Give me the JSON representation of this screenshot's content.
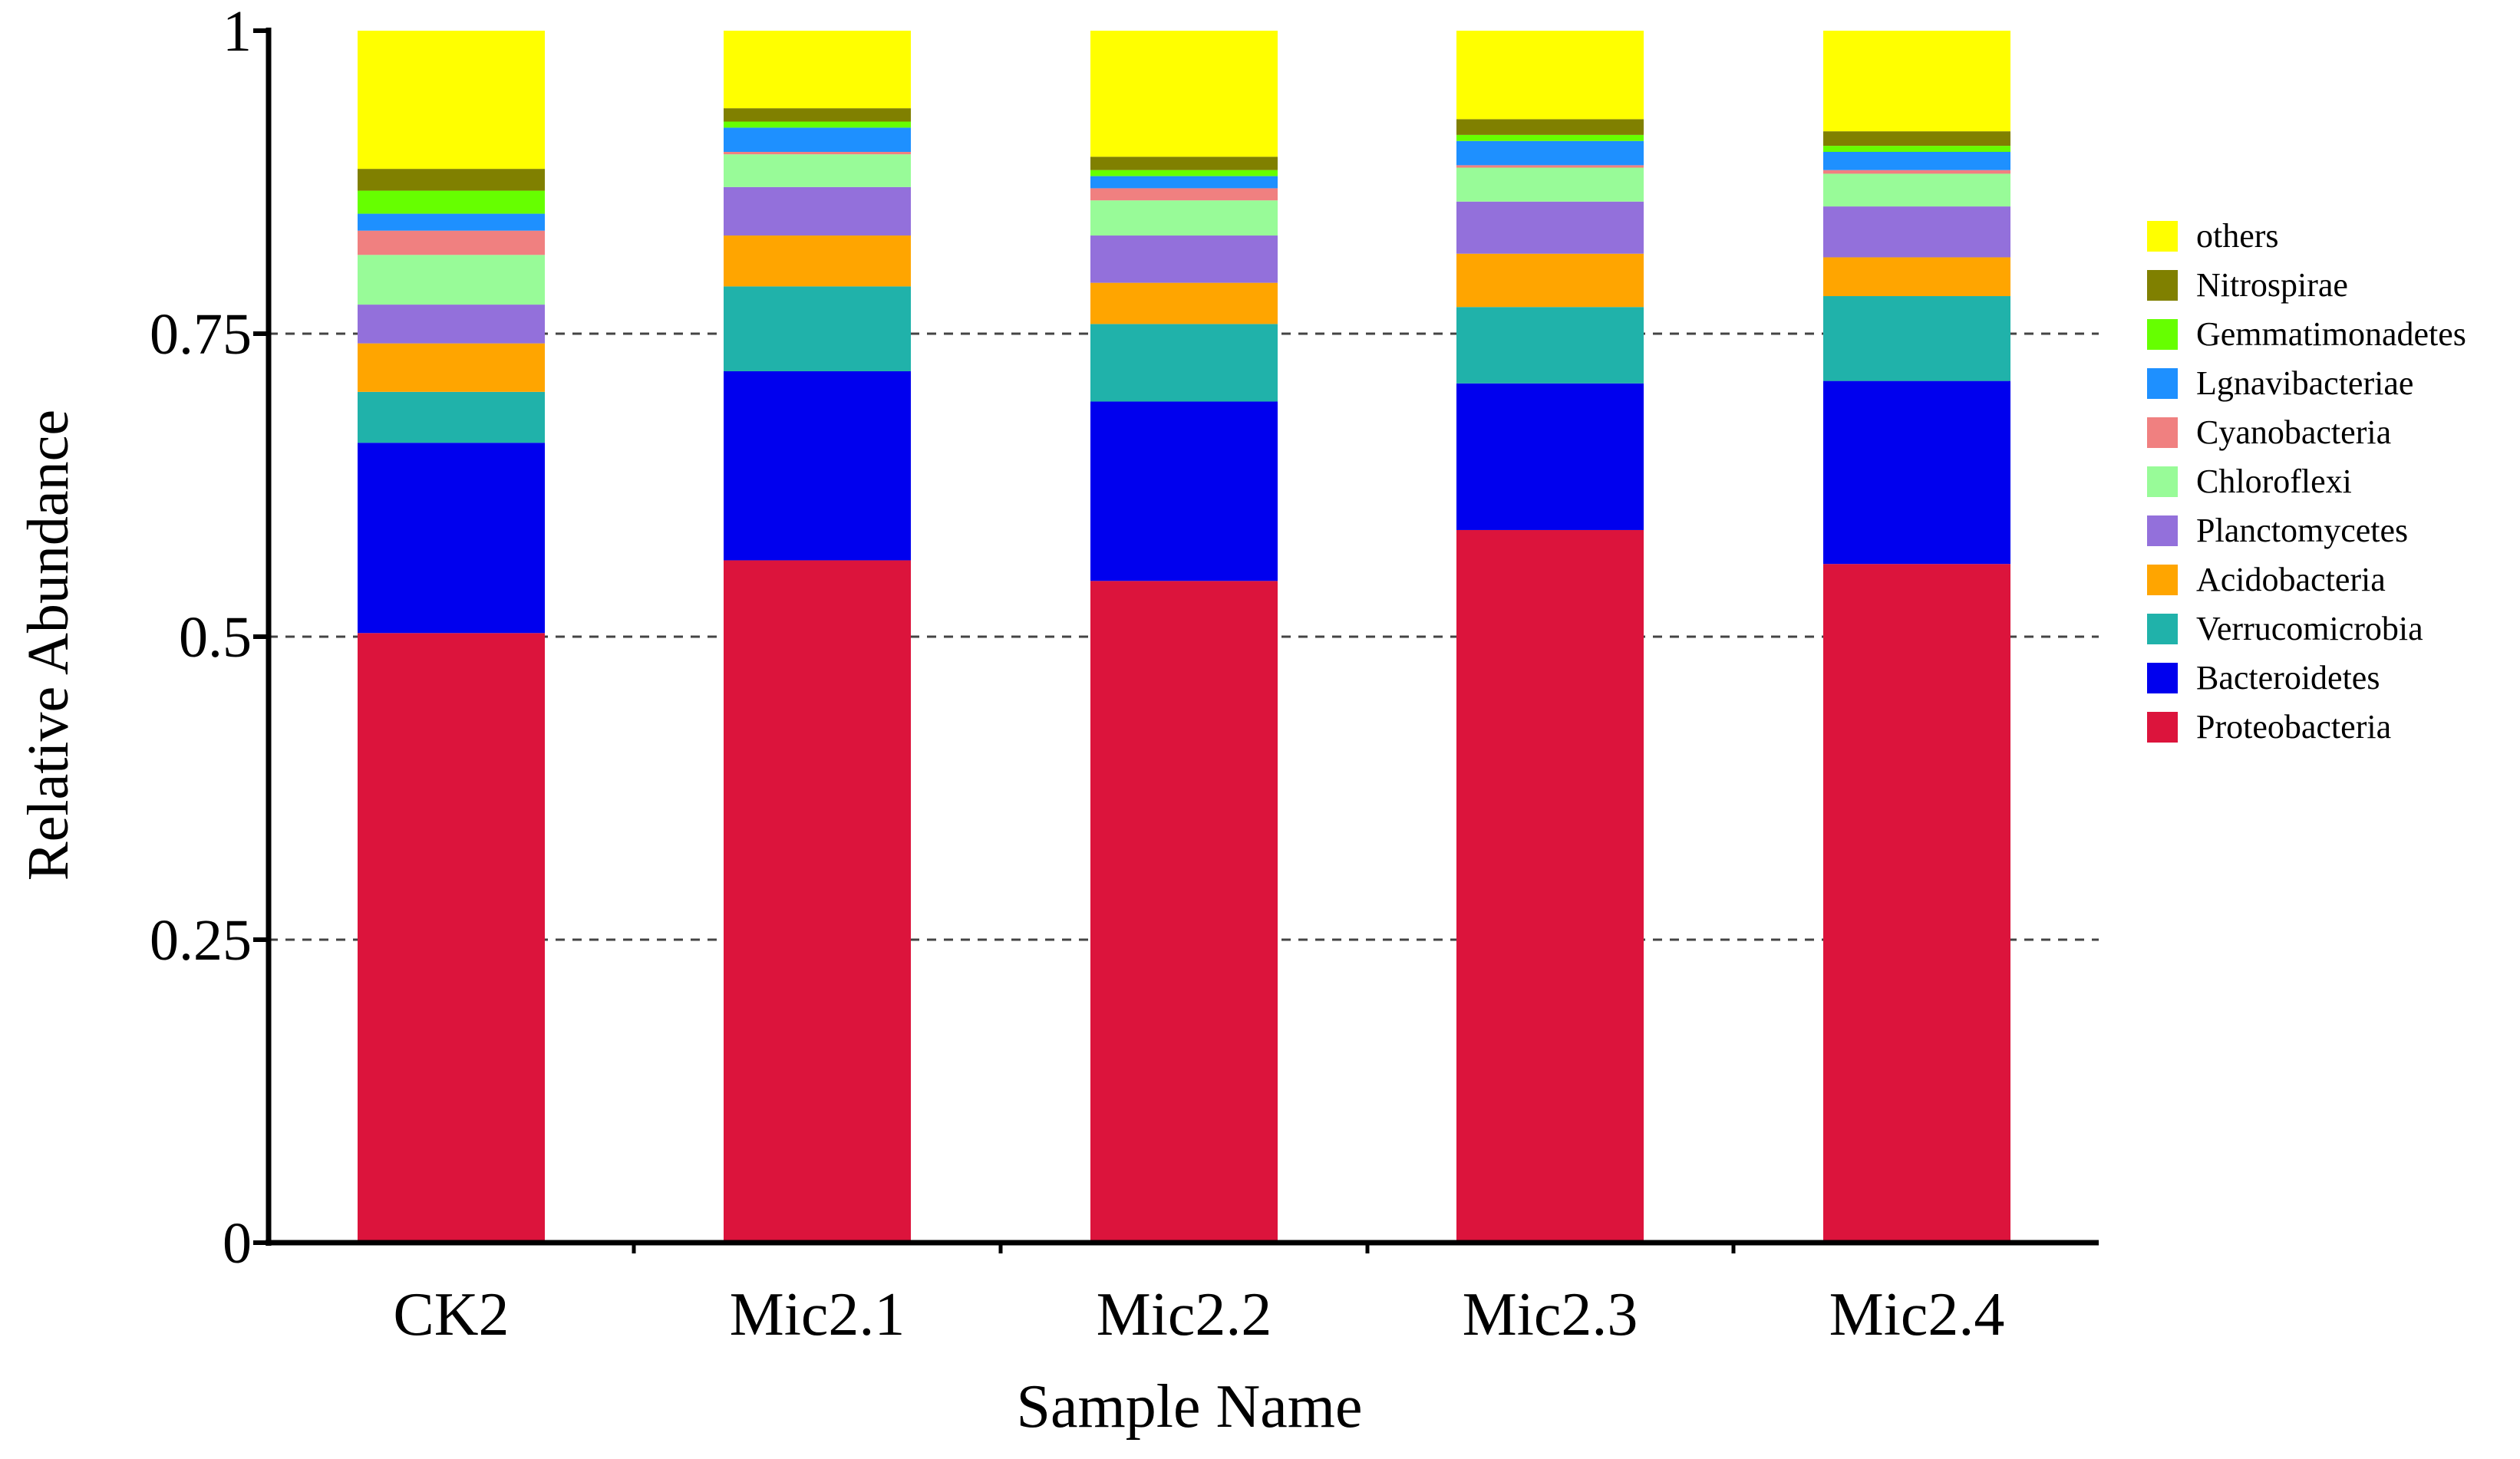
{
  "chart_data": {
    "type": "bar",
    "stacked": true,
    "title": "",
    "xlabel": "Sample Name",
    "ylabel": "Relative Abundance",
    "ylim": [
      0,
      1
    ],
    "yticks": [
      0,
      0.25,
      0.5,
      0.75,
      1
    ],
    "ytick_labels": [
      "0",
      "0.25",
      "0.5",
      "0.75",
      "1"
    ],
    "grid": "dashed horizontal at 0.25, 0.5, 0.75",
    "legend_position": "right",
    "categories": [
      "CK2",
      "Mic2.1",
      "Mic2.2",
      "Mic2.3",
      "Mic2.4"
    ],
    "series": [
      {
        "name": "Proteobacteria",
        "color": "#DC143C",
        "values": [
          0.503,
          0.563,
          0.546,
          0.588,
          0.56
        ]
      },
      {
        "name": "Bacteroidetes",
        "color": "#0000EE",
        "values": [
          0.157,
          0.156,
          0.148,
          0.121,
          0.151
        ]
      },
      {
        "name": "Verrucomicrobia",
        "color": "#20B2AA",
        "values": [
          0.042,
          0.07,
          0.064,
          0.063,
          0.07
        ]
      },
      {
        "name": "Acidobacteria",
        "color": "#FFA500",
        "values": [
          0.04,
          0.042,
          0.034,
          0.044,
          0.032
        ]
      },
      {
        "name": "Planctomycetes",
        "color": "#9370DB",
        "values": [
          0.032,
          0.04,
          0.039,
          0.043,
          0.042
        ]
      },
      {
        "name": "Chloroflexi",
        "color": "#98FB98",
        "values": [
          0.041,
          0.027,
          0.029,
          0.028,
          0.027
        ]
      },
      {
        "name": "Cyanobacteria",
        "color": "#F08080",
        "values": [
          0.02,
          0.002,
          0.01,
          0.002,
          0.003
        ]
      },
      {
        "name": "Lgnavibacteriae",
        "color": "#1E90FF",
        "values": [
          0.014,
          0.02,
          0.01,
          0.02,
          0.015
        ]
      },
      {
        "name": "Gemmatimonadetes",
        "color": "#66FF00",
        "values": [
          0.019,
          0.005,
          0.005,
          0.005,
          0.005
        ]
      },
      {
        "name": "Nitrospirae",
        "color": "#808000",
        "values": [
          0.018,
          0.011,
          0.011,
          0.013,
          0.012
        ]
      },
      {
        "name": "others",
        "color": "#FFFF00",
        "values": [
          0.114,
          0.064,
          0.104,
          0.073,
          0.083
        ]
      }
    ]
  }
}
